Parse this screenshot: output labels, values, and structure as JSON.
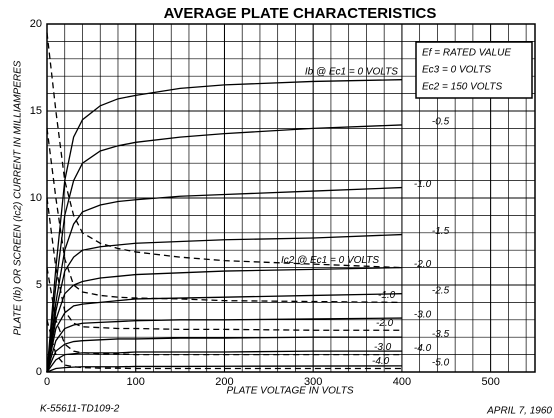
{
  "chart_data": {
    "type": "line",
    "title": "AVERAGE PLATE CHARACTERISTICS",
    "x_label": "PLATE VOLTAGE IN VOLTS",
    "y_label": "PLATE (Ib) OR SCREEN (Ic2) CURRENT IN MILLIAMPERES",
    "footer_left": "K-55611-TD109-2",
    "footer_right": "APRIL 7, 1960",
    "conditions": [
      "Ef = RATED VALUE",
      "Ec3 = 0 VOLTS",
      "Ec2 = 150 VOLTS"
    ],
    "xlim": [
      0,
      550
    ],
    "ylim": [
      0,
      20
    ],
    "xticks": [
      0,
      100,
      200,
      300,
      400,
      500
    ],
    "yticks": [
      0,
      5,
      10,
      15,
      20
    ],
    "grid": true,
    "minor_grid": {
      "x": 20,
      "y": 1
    },
    "x": [
      0,
      10,
      20,
      30,
      40,
      60,
      80,
      100,
      150,
      200,
      300,
      400
    ],
    "series": [
      {
        "name": "Ib @ Ec1 = 0 VOLTS",
        "color": "#000000",
        "dashed": false,
        "values": [
          0,
          6,
          11,
          13.5,
          14.5,
          15.3,
          15.7,
          15.9,
          16.3,
          16.5,
          16.7,
          16.8
        ]
      },
      {
        "name": "-0.5",
        "color": "#000000",
        "dashed": false,
        "values": [
          0,
          5,
          9,
          11,
          12,
          12.7,
          13,
          13.2,
          13.5,
          13.7,
          14,
          14.2
        ]
      },
      {
        "name": "-1.0",
        "color": "#000000",
        "dashed": false,
        "values": [
          0,
          4,
          7,
          8.5,
          9.2,
          9.6,
          9.8,
          9.9,
          10.1,
          10.2,
          10.4,
          10.6
        ]
      },
      {
        "name": "-1.5",
        "color": "#000000",
        "dashed": false,
        "values": [
          0,
          3.5,
          5.8,
          6.6,
          7,
          7.2,
          7.3,
          7.4,
          7.5,
          7.6,
          7.7,
          7.9
        ]
      },
      {
        "name": "-2.0",
        "color": "#000000",
        "dashed": false,
        "values": [
          0,
          3,
          4.5,
          5,
          5.2,
          5.4,
          5.5,
          5.6,
          5.7,
          5.8,
          5.9,
          6
        ]
      },
      {
        "name": "-2.5",
        "color": "#000000",
        "dashed": false,
        "values": [
          0,
          2.5,
          3.4,
          3.8,
          3.9,
          4,
          4.1,
          4.2,
          4.25,
          4.3,
          4.4,
          4.5
        ]
      },
      {
        "name": "-3.0",
        "color": "#000000",
        "dashed": false,
        "values": [
          0,
          1.8,
          2.5,
          2.7,
          2.8,
          2.85,
          2.9,
          2.95,
          3,
          3,
          3.05,
          3.1
        ]
      },
      {
        "name": "-3.5",
        "color": "#000000",
        "dashed": false,
        "values": [
          0,
          1.2,
          1.6,
          1.75,
          1.8,
          1.85,
          1.9,
          1.9,
          1.95,
          1.95,
          2,
          2
        ]
      },
      {
        "name": "-4.0",
        "color": "#000000",
        "dashed": false,
        "values": [
          0,
          0.7,
          1,
          1.05,
          1.1,
          1.1,
          1.1,
          1.15,
          1.15,
          1.15,
          1.2,
          1.2
        ]
      },
      {
        "name": "-5.0",
        "color": "#000000",
        "dashed": false,
        "values": [
          0,
          0.2,
          0.25,
          0.28,
          0.3,
          0.3,
          0.3,
          0.32,
          0.32,
          0.33,
          0.34,
          0.35
        ]
      },
      {
        "name": "Ic2 @ Ec1 = 0 VOLTS",
        "color": "#000000",
        "dashed": true,
        "values": [
          19.5,
          15,
          11,
          9,
          8,
          7.4,
          7.1,
          6.9,
          6.6,
          6.4,
          6.2,
          6
        ]
      },
      {
        "name": "-1.0",
        "color": "#000000",
        "dashed": true,
        "values": [
          14,
          10,
          6.5,
          5,
          4.6,
          4.4,
          4.3,
          4.25,
          4.2,
          4.1,
          4.05,
          4
        ]
      },
      {
        "name": "-2.0",
        "color": "#000000",
        "dashed": true,
        "values": [
          10,
          6,
          3.5,
          2.8,
          2.6,
          2.55,
          2.5,
          2.5,
          2.45,
          2.45,
          2.4,
          2.4
        ]
      },
      {
        "name": "-3.0",
        "color": "#000000",
        "dashed": true,
        "values": [
          6,
          3,
          1.6,
          1.2,
          1.1,
          1.05,
          1.05,
          1,
          1,
          1,
          1,
          1
        ]
      },
      {
        "name": "-4.0",
        "color": "#000000",
        "dashed": true,
        "values": [
          3,
          1,
          0.4,
          0.3,
          0.25,
          0.22,
          0.22,
          0.2,
          0.2,
          0.2,
          0.2,
          0.2
        ]
      }
    ]
  }
}
